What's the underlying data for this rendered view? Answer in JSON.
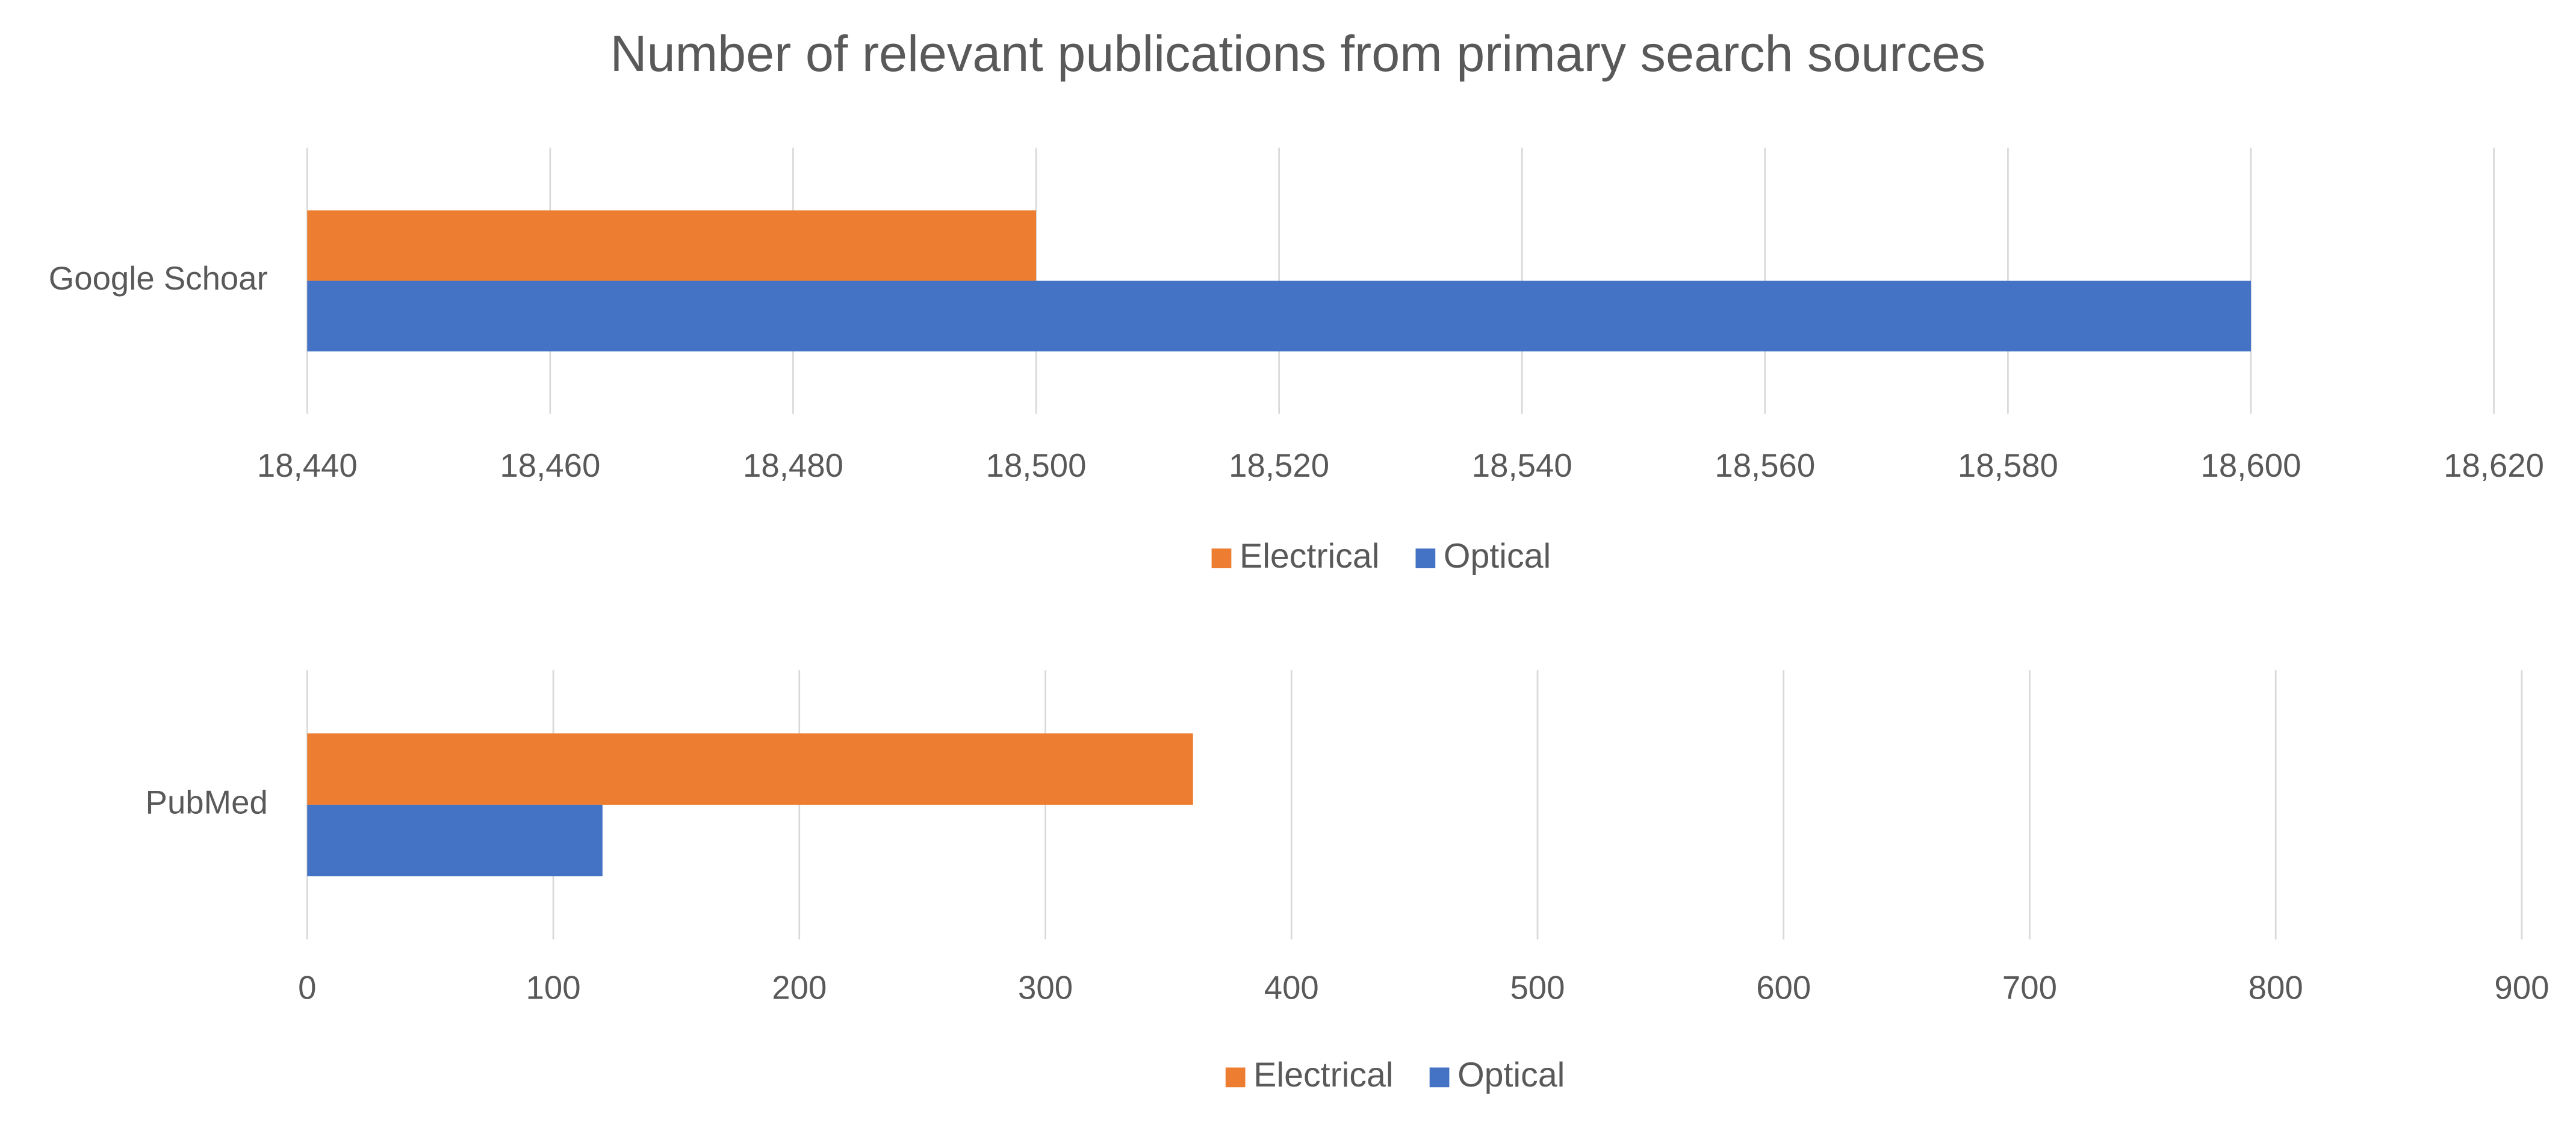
{
  "title": "Number of relevant publications from primary search sources",
  "chart_data": [
    {
      "type": "bar",
      "orientation": "horizontal",
      "categories": [
        "Google Schoar"
      ],
      "series": [
        {
          "name": "Electrical",
          "color": "#ED7D31",
          "values": [
            18500
          ]
        },
        {
          "name": "Optical",
          "color": "#4472C4",
          "values": [
            18600
          ]
        }
      ],
      "xlim": [
        18440,
        18620
      ],
      "xticks": [
        {
          "value": 18440,
          "label": "18,440"
        },
        {
          "value": 18460,
          "label": "18,460"
        },
        {
          "value": 18480,
          "label": "18,480"
        },
        {
          "value": 18500,
          "label": "18,500"
        },
        {
          "value": 18520,
          "label": "18,520"
        },
        {
          "value": 18540,
          "label": "18,540"
        },
        {
          "value": 18560,
          "label": "18,560"
        },
        {
          "value": 18580,
          "label": "18,580"
        },
        {
          "value": 18600,
          "label": "18,600"
        },
        {
          "value": 18620,
          "label": "18,620"
        }
      ],
      "grid": true,
      "legend": "bottom"
    },
    {
      "type": "bar",
      "orientation": "horizontal",
      "categories": [
        "PubMed"
      ],
      "series": [
        {
          "name": "Electrical",
          "color": "#ED7D31",
          "values": [
            360
          ]
        },
        {
          "name": "Optical",
          "color": "#4472C4",
          "values": [
            120
          ]
        }
      ],
      "xlim": [
        0,
        900
      ],
      "xticks": [
        0,
        100,
        200,
        300,
        400,
        500,
        600,
        700,
        800,
        900
      ],
      "grid": true,
      "legend": "bottom"
    }
  ]
}
